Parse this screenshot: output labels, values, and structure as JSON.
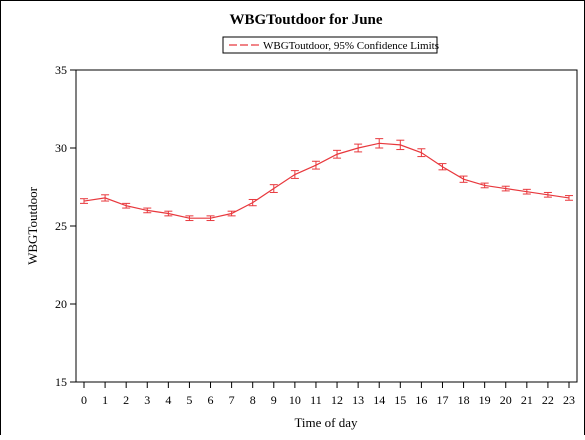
{
  "chart_data": {
    "type": "line",
    "title": "WBGToutdoor for June",
    "xlabel": "Time of day",
    "ylabel": "WBGToutdoor",
    "legend": {
      "placement": "top-center",
      "entries": [
        "WBGToutdoor, 95% Confidence Limits"
      ]
    },
    "x": [
      0,
      1,
      2,
      3,
      4,
      5,
      6,
      7,
      8,
      9,
      10,
      11,
      12,
      13,
      14,
      15,
      16,
      17,
      18,
      19,
      20,
      21,
      22,
      23
    ],
    "series": [
      {
        "name": "WBGToutdoor, 95% Confidence Limits",
        "color": "#e8383d",
        "values": [
          26.6,
          26.8,
          26.3,
          26.0,
          25.8,
          25.5,
          25.5,
          25.8,
          26.5,
          27.4,
          28.3,
          28.9,
          29.6,
          30.0,
          30.3,
          30.2,
          29.7,
          28.8,
          28.0,
          27.6,
          27.4,
          27.2,
          27.0,
          26.8
        ],
        "lower": [
          26.45,
          26.6,
          26.15,
          25.85,
          25.65,
          25.35,
          25.35,
          25.65,
          26.3,
          27.15,
          28.05,
          28.65,
          29.35,
          29.75,
          30.0,
          29.9,
          29.45,
          28.6,
          27.8,
          27.45,
          27.25,
          27.05,
          26.85,
          26.65
        ],
        "upper": [
          26.75,
          27.0,
          26.45,
          26.15,
          25.95,
          25.65,
          25.65,
          25.95,
          26.7,
          27.65,
          28.55,
          29.15,
          29.85,
          30.25,
          30.6,
          30.5,
          29.95,
          29.0,
          28.2,
          27.75,
          27.55,
          27.35,
          27.15,
          26.95
        ]
      }
    ],
    "xlim": [
      0,
      23
    ],
    "ylim": [
      15,
      35
    ],
    "yticks": [
      15,
      20,
      25,
      30,
      35
    ],
    "xticks": [
      "0",
      "1",
      "2",
      "3",
      "4",
      "5",
      "6",
      "7",
      "8",
      "9",
      "10",
      "11",
      "12",
      "13",
      "14",
      "15",
      "16",
      "17",
      "18",
      "19",
      "20",
      "21",
      "22",
      "23"
    ],
    "grid": false
  }
}
